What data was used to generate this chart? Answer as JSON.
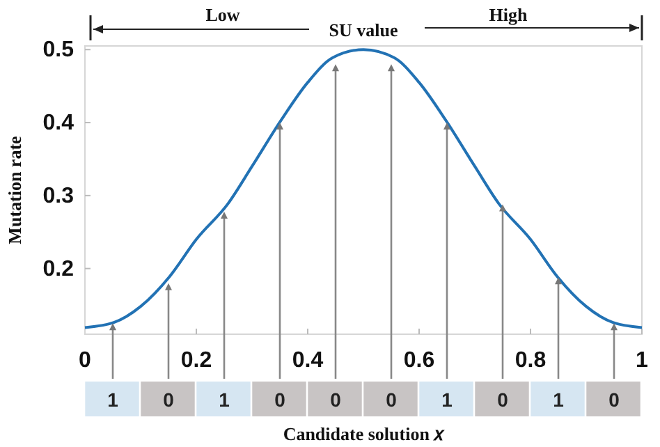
{
  "chart_data": {
    "type": "line",
    "xlabel": "Candidate solution 𝑥",
    "ylabel": "Mutation rate",
    "x": [
      0,
      0.052,
      0.1,
      0.152,
      0.2,
      0.257,
      0.3,
      0.352,
      0.4,
      0.445,
      0.5,
      0.555,
      0.6,
      0.648,
      0.7,
      0.743,
      0.8,
      0.848,
      0.9,
      0.948,
      1
    ],
    "series": [
      {
        "color": "#2272b4",
        "values": [
          0.119,
          0.126,
          0.148,
          0.189,
          0.24,
          0.289,
          0.34,
          0.403,
          0.455,
          0.489,
          0.5,
          0.489,
          0.455,
          0.403,
          0.34,
          0.289,
          0.24,
          0.189,
          0.148,
          0.126,
          0.119
        ]
      }
    ],
    "xlim": [
      0,
      1
    ],
    "xticks": [
      0,
      0.2,
      0.4,
      0.6,
      0.8,
      1
    ],
    "ylim": [
      0.11,
      0.505
    ],
    "yticks": [
      0.2,
      0.3,
      0.4,
      0.5
    ],
    "grid": false,
    "marker": "none",
    "line_style": "solid",
    "annotations": [
      "Low",
      "SU value",
      "High",
      {
        "text": "1",
        "x": 0.05,
        "y": 0.125
      },
      {
        "text": "0",
        "x": 0.15,
        "y": 0.18
      },
      {
        "text": "1",
        "x": 0.25,
        "y": 0.278
      },
      {
        "text": "0",
        "x": 0.35,
        "y": 0.4
      },
      {
        "text": "0",
        "x": 0.45,
        "y": 0.48
      },
      {
        "text": "0",
        "x": 0.55,
        "y": 0.48
      },
      {
        "text": "1",
        "x": 0.65,
        "y": 0.4
      },
      {
        "text": "0",
        "x": 0.75,
        "y": 0.288
      },
      {
        "text": "1",
        "x": 0.85,
        "y": 0.188
      },
      {
        "text": "0",
        "x": 0.95,
        "y": 0.125
      }
    ]
  }
}
